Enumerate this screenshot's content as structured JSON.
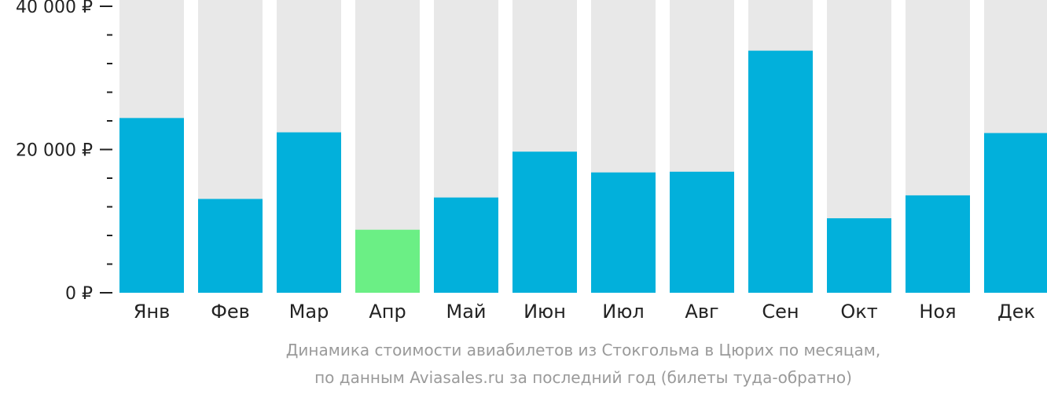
{
  "chart_data": {
    "type": "bar",
    "categories": [
      "Янв",
      "Фев",
      "Мар",
      "Апр",
      "Май",
      "Июн",
      "Июл",
      "Авг",
      "Сен",
      "Окт",
      "Ноя",
      "Дек"
    ],
    "values": [
      24400,
      13100,
      22400,
      8800,
      13300,
      19700,
      16800,
      16900,
      33800,
      10400,
      13600,
      22300
    ],
    "ylim": [
      0,
      40000
    ],
    "yticks": [
      {
        "value": 0,
        "label": "0 ₽"
      },
      {
        "value": 20000,
        "label": "20 000 ₽"
      },
      {
        "value": 40000,
        "label": "40 000 ₽"
      }
    ],
    "minor_tick_step": 4000,
    "highlight_index": 3,
    "caption": [
      "Динамика стоимости авиабилетов из Стокгольма в Цюрих по месяцам,",
      "по данным Aviasales.ru за последний год (билеты туда-обратно)"
    ],
    "colors": {
      "bar": "#02b0db",
      "highlight": "#6bef85",
      "background_bar": "#e8e8e8",
      "axis": "#222222",
      "caption": "#9a9a9a"
    },
    "grid": false,
    "legend": "none"
  }
}
